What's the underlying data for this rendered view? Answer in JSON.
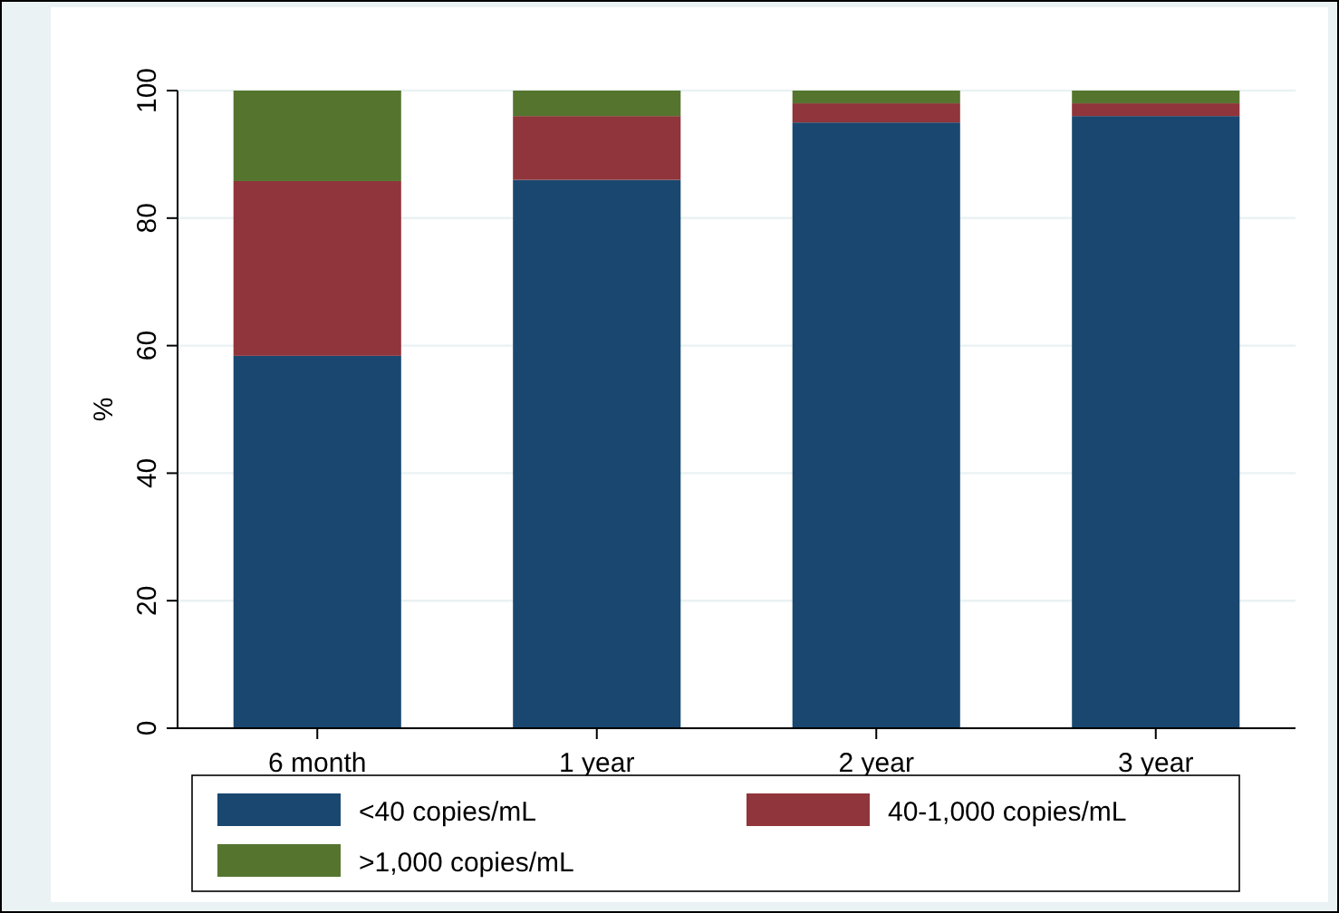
{
  "chart_data": {
    "type": "bar",
    "stacked": true,
    "ylabel": "%",
    "categories": [
      "6 month",
      "1 year",
      "2 year",
      "3 year"
    ],
    "series": [
      {
        "name": "<40 copies/mL",
        "color": "#1a476f",
        "values": [
          58.4,
          86,
          95,
          96
        ]
      },
      {
        "name": "40-1,000 copies/mL",
        "color": "#90353b",
        "values": [
          27.4,
          10,
          3,
          2
        ]
      },
      {
        "name": ">1,000 copies/mL",
        "color": "#55752f",
        "values": [
          14.2,
          4,
          2,
          2
        ]
      }
    ],
    "ylim": [
      0,
      100
    ],
    "yticks": [
      0,
      20,
      40,
      60,
      80,
      100
    ],
    "grid": "y",
    "legend": "bottom"
  }
}
